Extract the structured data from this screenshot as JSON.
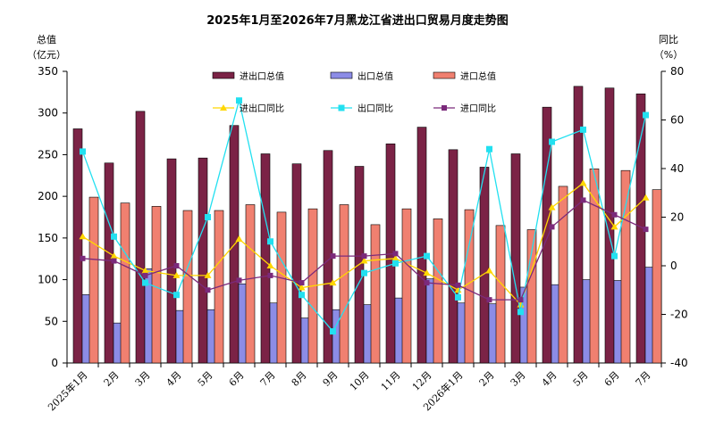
{
  "chart_data": {
    "type": "bar",
    "title": "2025年1月至2026年7月黑龙江省进出口贸易月度走势图",
    "ylabel_left": [
      "总值",
      "（亿元）"
    ],
    "ylabel_right": [
      "同比",
      "（%）"
    ],
    "ylim_left": [
      0,
      350
    ],
    "ylim_right": [
      -40,
      80
    ],
    "yticks_left": [
      0,
      50,
      100,
      150,
      200,
      250,
      300,
      350
    ],
    "yticks_right": [
      -40,
      -20,
      0,
      20,
      40,
      60,
      80
    ],
    "categories": [
      "2025年1月",
      "2月",
      "3月",
      "4月",
      "5月",
      "6月",
      "7月",
      "8月",
      "9月",
      "10月",
      "11月",
      "12月",
      "2026年1月",
      "2月",
      "3月",
      "4月",
      "5月",
      "6月",
      "7月"
    ],
    "series": [
      {
        "name": "进出口总值",
        "kind": "bar",
        "axis": "left",
        "color": "#7b2346",
        "values": [
          281,
          240,
          302,
          245,
          246,
          285,
          251,
          239,
          255,
          236,
          263,
          283,
          256,
          235,
          251,
          307,
          332,
          330,
          323
        ]
      },
      {
        "name": "出口总值",
        "kind": "bar",
        "axis": "left",
        "color": "#8c8ce6",
        "values": [
          82,
          48,
          113,
          63,
          64,
          95,
          72,
          54,
          64,
          70,
          78,
          101,
          72,
          71,
          91,
          94,
          100,
          99,
          115
        ]
      },
      {
        "name": "进口总值",
        "kind": "bar",
        "axis": "left",
        "color": "#f08070",
        "values": [
          199,
          192,
          188,
          183,
          183,
          190,
          181,
          185,
          190,
          166,
          185,
          173,
          184,
          165,
          160,
          212,
          233,
          231,
          208
        ]
      },
      {
        "name": "进出口同比",
        "kind": "line",
        "axis": "right",
        "color": "#ffd700",
        "values": [
          12,
          4,
          -2,
          -4,
          -4,
          11,
          0,
          -9,
          -7,
          2,
          3,
          -3,
          -10,
          -2,
          -16,
          24,
          34,
          16,
          28
        ]
      },
      {
        "name": "出口同比",
        "kind": "line",
        "axis": "right",
        "color": "#22e0f0",
        "values": [
          47,
          12,
          -7,
          -12,
          20,
          68,
          10,
          -12,
          -27,
          -3,
          1,
          4,
          -13,
          48,
          -19,
          51,
          56,
          4,
          62
        ]
      },
      {
        "name": "进口同比",
        "kind": "line",
        "axis": "right",
        "color": "#7b2a7b",
        "values": [
          3,
          2,
          -4,
          0,
          -10,
          -6,
          -4,
          -7,
          4,
          4,
          5,
          -7,
          -8,
          -14,
          -14,
          16,
          27,
          21,
          15
        ]
      }
    ],
    "legend": "top-center, two rows",
    "grid": false
  }
}
